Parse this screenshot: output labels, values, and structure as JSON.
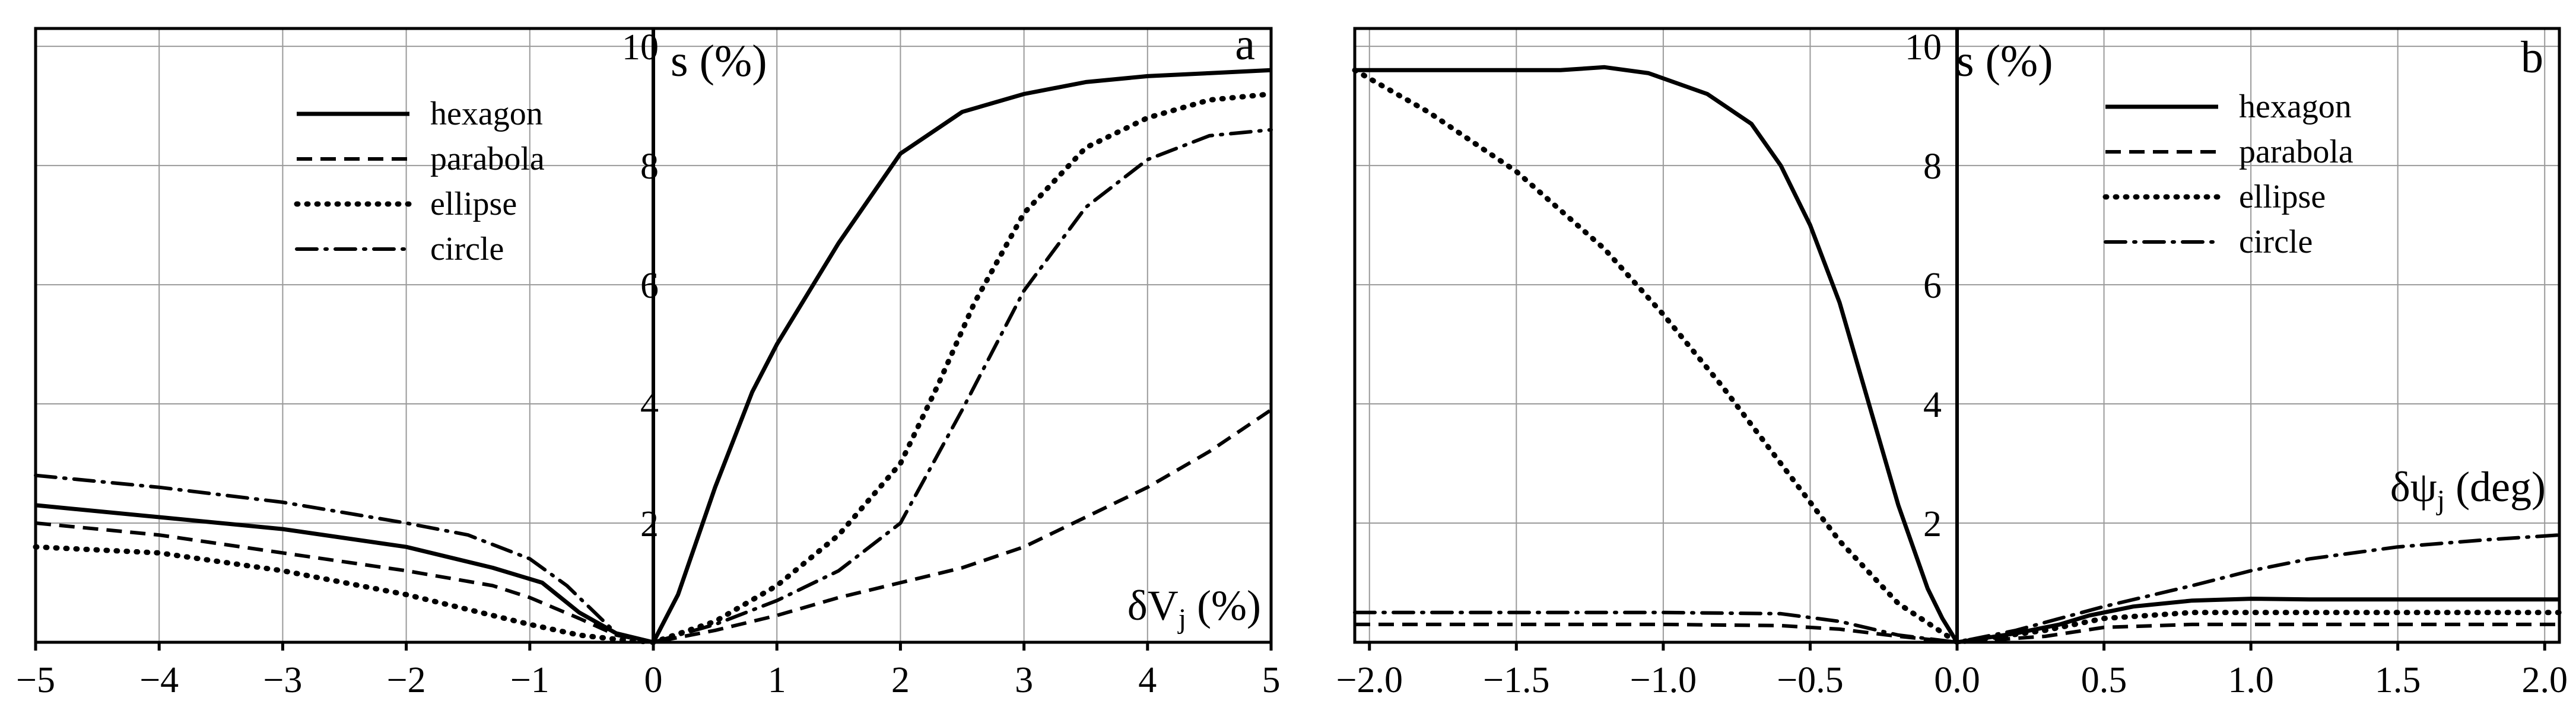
{
  "chart_data": [
    {
      "type": "line",
      "panel_label": "a",
      "ylabel": "s (%)",
      "xlabel_base": "δV",
      "xlabel_sub": "j",
      "xlabel_tail": " (%)",
      "xlim": [
        -5,
        5
      ],
      "ylim": [
        0,
        10.3
      ],
      "x_ticks": [
        "−5",
        "−4",
        "−3",
        "−2",
        "−1",
        "0",
        "1",
        "2",
        "3",
        "4",
        "5"
      ],
      "y_ticks": [
        "2",
        "4",
        "6",
        "8",
        "10"
      ],
      "grid": true,
      "legend_position": "top-left",
      "series": [
        {
          "name": "hexagon",
          "style": "solid",
          "x": [
            -5,
            -4,
            -3,
            -2,
            -1.3,
            -0.9,
            -0.6,
            -0.3,
            0,
            0.2,
            0.5,
            0.8,
            1.0,
            1.5,
            2.0,
            2.5,
            3.0,
            3.5,
            4.0,
            4.5,
            5.0
          ],
          "y": [
            2.3,
            2.1,
            1.9,
            1.6,
            1.25,
            1.0,
            0.5,
            0.15,
            0,
            0.8,
            2.6,
            4.2,
            5.0,
            6.7,
            8.2,
            8.9,
            9.2,
            9.4,
            9.5,
            9.55,
            9.6
          ]
        },
        {
          "name": "parabola",
          "style": "dashed",
          "x": [
            -5,
            -4,
            -3,
            -2,
            -1.3,
            -1.0,
            -0.6,
            -0.3,
            0,
            0.5,
            1.0,
            1.5,
            2.0,
            2.5,
            3.0,
            3.5,
            4.0,
            4.5,
            5.0
          ],
          "y": [
            2.0,
            1.8,
            1.5,
            1.2,
            0.95,
            0.75,
            0.4,
            0.12,
            0,
            0.2,
            0.45,
            0.75,
            1.0,
            1.25,
            1.6,
            2.1,
            2.6,
            3.2,
            3.9
          ]
        },
        {
          "name": "ellipse",
          "style": "dotted",
          "x": [
            -5,
            -4,
            -3,
            -2,
            -1.5,
            -1.0,
            -0.6,
            -0.3,
            0,
            0.5,
            1.0,
            1.5,
            2.0,
            2.3,
            2.6,
            3.0,
            3.5,
            4.0,
            4.5,
            5.0
          ],
          "y": [
            1.6,
            1.5,
            1.2,
            0.8,
            0.55,
            0.3,
            0.12,
            0.05,
            0,
            0.35,
            0.95,
            1.8,
            3.0,
            4.3,
            5.7,
            7.2,
            8.3,
            8.8,
            9.1,
            9.2
          ]
        },
        {
          "name": "circle",
          "style": "dashdot",
          "x": [
            -5,
            -4,
            -3,
            -2,
            -1.5,
            -1.0,
            -0.7,
            -0.5,
            -0.3,
            0,
            0.5,
            1.0,
            1.5,
            2.0,
            2.5,
            3.0,
            3.5,
            4.0,
            4.5,
            5.0
          ],
          "y": [
            2.8,
            2.6,
            2.35,
            2.0,
            1.8,
            1.4,
            0.95,
            0.55,
            0.15,
            0,
            0.3,
            0.7,
            1.2,
            2.0,
            3.9,
            5.9,
            7.3,
            8.1,
            8.5,
            8.6
          ]
        }
      ]
    },
    {
      "type": "line",
      "panel_label": "b",
      "ylabel": "s (%)",
      "xlabel_base": "δψ",
      "xlabel_sub": "j",
      "xlabel_tail": " (deg)",
      "xlim": [
        -2.05,
        2.05
      ],
      "ylim": [
        0,
        10.3
      ],
      "x_ticks": [
        "−2.0",
        "−1.5",
        "−1.0",
        "−0.5",
        "0.0",
        "0.5",
        "1.0",
        "1.5",
        "2.0"
      ],
      "y_ticks": [
        "2",
        "4",
        "6",
        "8",
        "10"
      ],
      "grid": true,
      "legend_position": "top-right",
      "series": [
        {
          "name": "hexagon",
          "style": "solid",
          "x": [
            -2.05,
            -1.6,
            -1.35,
            -1.2,
            -1.05,
            -0.85,
            -0.7,
            -0.6,
            -0.5,
            -0.4,
            -0.3,
            -0.2,
            -0.1,
            -0.05,
            0,
            0.2,
            0.35,
            0.45,
            0.6,
            0.8,
            1.0,
            1.2,
            1.5,
            2.05
          ],
          "y": [
            9.6,
            9.6,
            9.6,
            9.65,
            9.55,
            9.2,
            8.7,
            8.0,
            7.0,
            5.7,
            4.0,
            2.3,
            0.9,
            0.4,
            0,
            0.15,
            0.3,
            0.45,
            0.6,
            0.7,
            0.73,
            0.72,
            0.72,
            0.72
          ]
        },
        {
          "name": "parabola",
          "style": "dashed",
          "x": [
            -2.05,
            -1.5,
            -1.0,
            -0.6,
            -0.4,
            -0.2,
            0,
            0.3,
            0.5,
            0.8,
            1.0,
            1.5,
            2.05
          ],
          "y": [
            0.3,
            0.3,
            0.3,
            0.28,
            0.22,
            0.1,
            0,
            0.1,
            0.25,
            0.3,
            0.3,
            0.3,
            0.3
          ]
        },
        {
          "name": "ellipse",
          "style": "dotted",
          "x": [
            -2.05,
            -1.8,
            -1.5,
            -1.2,
            -1.0,
            -0.8,
            -0.6,
            -0.4,
            -0.2,
            0,
            0.3,
            0.5,
            0.8,
            1.0,
            1.5,
            2.05
          ],
          "y": [
            9.6,
            8.9,
            7.9,
            6.6,
            5.5,
            4.3,
            3.0,
            1.7,
            0.65,
            0,
            0.2,
            0.4,
            0.5,
            0.5,
            0.5,
            0.5
          ]
        },
        {
          "name": "circle",
          "style": "dashdot",
          "x": [
            -2.05,
            -1.5,
            -1.0,
            -0.6,
            -0.4,
            -0.2,
            0,
            0.2,
            0.5,
            0.8,
            1.0,
            1.2,
            1.5,
            1.8,
            2.05
          ],
          "y": [
            0.5,
            0.5,
            0.5,
            0.48,
            0.35,
            0.12,
            0,
            0.2,
            0.6,
            0.95,
            1.2,
            1.4,
            1.6,
            1.72,
            1.8
          ]
        }
      ]
    }
  ]
}
